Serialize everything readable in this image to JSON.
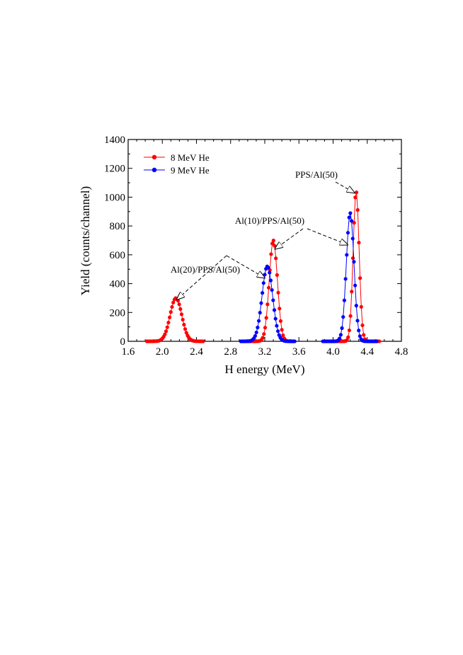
{
  "chart_data": {
    "type": "line",
    "title": "",
    "xlabel": "H energy (MeV)",
    "ylabel": "Yield (counts/channel)",
    "xlim": [
      1.6,
      4.8
    ],
    "ylim": [
      0,
      1400
    ],
    "xticks": [
      "1.6",
      "2.0",
      "2.4",
      "2.8",
      "3.2",
      "3.6",
      "4.0",
      "4.4",
      "4.8"
    ],
    "yticks": [
      "0",
      "200",
      "400",
      "600",
      "800",
      "1000",
      "1200",
      "1400"
    ],
    "legend_position": "top-left",
    "series": [
      {
        "name": "8 MeV He",
        "color": "#ff0000",
        "marker": "circle",
        "peaks": [
          {
            "center": 2.16,
            "height": 300,
            "sigma": 0.068,
            "x_range": [
              1.82,
              2.48
            ]
          },
          {
            "center": 3.3,
            "height": 700,
            "sigma": 0.048,
            "x_range": [
              2.98,
              3.55
            ]
          },
          {
            "center": 4.27,
            "height": 1040,
            "sigma": 0.035,
            "x_range": [
              3.98,
              4.55
            ]
          }
        ]
      },
      {
        "name": "9 MeV He",
        "color": "#0000ff",
        "marker": "circle",
        "peaks": [
          {
            "center": 3.23,
            "height": 520,
            "sigma": 0.062,
            "x_range": [
              2.92,
              3.56
            ]
          },
          {
            "center": 4.2,
            "height": 890,
            "sigma": 0.045,
            "x_range": [
              3.88,
              4.52
            ]
          }
        ]
      }
    ],
    "annotations": [
      {
        "text": "PPS/Al(50)",
        "points_to": [
          {
            "x": 4.25,
            "y": 1030
          }
        ]
      },
      {
        "text": "Al(10)/PPS/Al(50)",
        "points_to": [
          {
            "x": 3.32,
            "y": 640
          },
          {
            "x": 4.17,
            "y": 670
          }
        ]
      },
      {
        "text": "Al(20)/PPS/Al(50)",
        "points_to": [
          {
            "x": 2.17,
            "y": 290
          },
          {
            "x": 3.2,
            "y": 440
          }
        ]
      }
    ]
  }
}
